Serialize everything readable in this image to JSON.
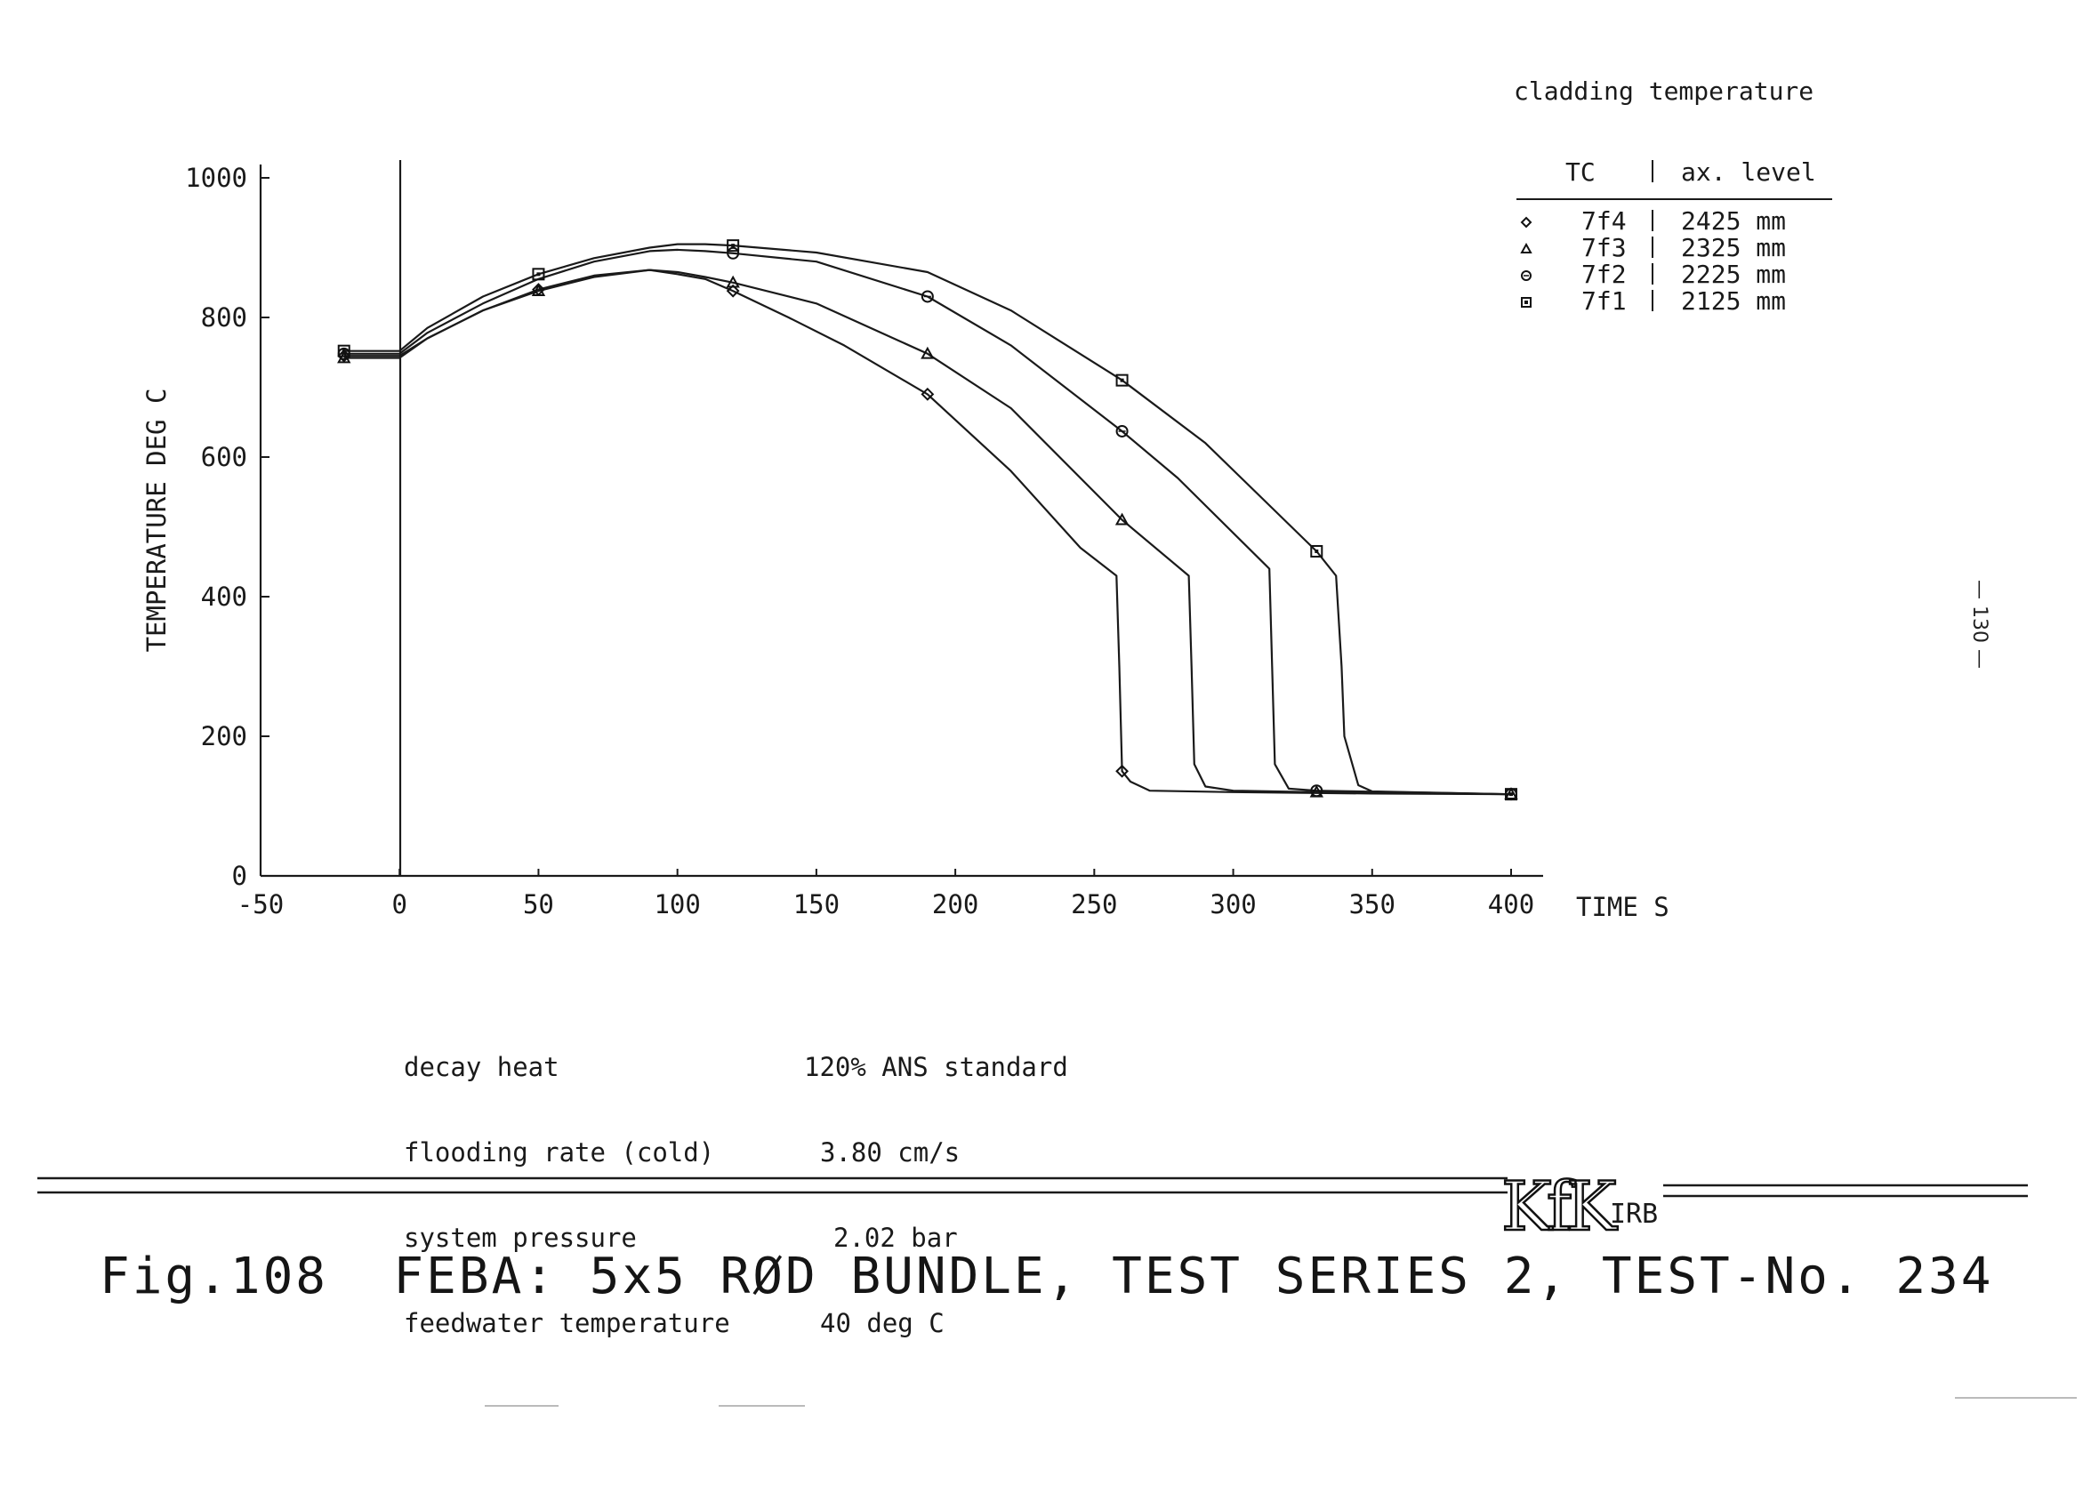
{
  "chart_data": {
    "type": "line",
    "legend_title": "cladding temperature",
    "legend_headers": [
      "TC",
      "ax. level"
    ],
    "xlabel": "TIME S",
    "ylabel": "TEMPERATURE DEG C",
    "xlim": [
      -50,
      400
    ],
    "ylim": [
      0,
      1000
    ],
    "x_ticks": [
      "-50",
      "0",
      "50",
      "100",
      "150",
      "200",
      "250",
      "300",
      "350",
      "400"
    ],
    "y_ticks": [
      "0",
      "200",
      "400",
      "600",
      "800",
      "1000"
    ],
    "grid": false,
    "legend_position": "top-right",
    "series": [
      {
        "name": "7f4",
        "level": "2425 mm",
        "marker": "diamond",
        "x": [
          -20,
          0,
          10,
          30,
          50,
          70,
          90,
          100,
          110,
          120,
          140,
          160,
          190,
          220,
          245,
          258,
          259,
          260,
          263,
          270,
          300,
          350,
          400
        ],
        "y": [
          745,
          745,
          770,
          810,
          840,
          860,
          868,
          862,
          855,
          838,
          800,
          760,
          690,
          580,
          470,
          430,
          300,
          150,
          135,
          122,
          120,
          118,
          117
        ]
      },
      {
        "name": "7f3",
        "level": "2325 mm",
        "marker": "triangle",
        "x": [
          -20,
          0,
          10,
          30,
          50,
          70,
          90,
          100,
          110,
          120,
          150,
          190,
          220,
          260,
          284,
          285,
          286,
          290,
          300,
          330,
          400
        ],
        "y": [
          742,
          742,
          770,
          810,
          838,
          858,
          868,
          865,
          858,
          850,
          820,
          748,
          670,
          510,
          430,
          300,
          160,
          128,
          122,
          120,
          117
        ]
      },
      {
        "name": "7f2",
        "level": "2225 mm",
        "marker": "circle",
        "x": [
          -20,
          0,
          10,
          30,
          50,
          70,
          90,
          100,
          110,
          120,
          150,
          190,
          220,
          260,
          280,
          313,
          314,
          315,
          320,
          330,
          400
        ],
        "y": [
          748,
          748,
          778,
          820,
          855,
          880,
          895,
          897,
          895,
          892,
          880,
          830,
          760,
          637,
          570,
          440,
          300,
          160,
          125,
          122,
          117
        ]
      },
      {
        "name": "7f1",
        "level": "2125 mm",
        "marker": "square",
        "x": [
          -20,
          0,
          10,
          30,
          50,
          70,
          90,
          100,
          110,
          120,
          150,
          190,
          220,
          260,
          290,
          330,
          337,
          339,
          340,
          345,
          350,
          400
        ],
        "y": [
          752,
          752,
          785,
          830,
          862,
          885,
          900,
          905,
          905,
          903,
          893,
          865,
          810,
          710,
          620,
          465,
          430,
          300,
          200,
          130,
          121,
          117
        ]
      }
    ]
  },
  "conditions": [
    {
      "label": "decay heat",
      "value": "120% ANS standard"
    },
    {
      "label": "flooding rate (cold)",
      "value": "3.80 cm/s"
    },
    {
      "label": "system pressure",
      "value": "2.02 bar"
    },
    {
      "label": "feedwater temperature",
      "value": "40 deg C"
    }
  ],
  "logo": {
    "text": "KfK",
    "suffix": "IRB"
  },
  "caption": "Fig.108  FEBA: 5x5 RØD BUNDLE, TEST SERIES 2, TEST-No. 234",
  "page_number": "— 130 —"
}
